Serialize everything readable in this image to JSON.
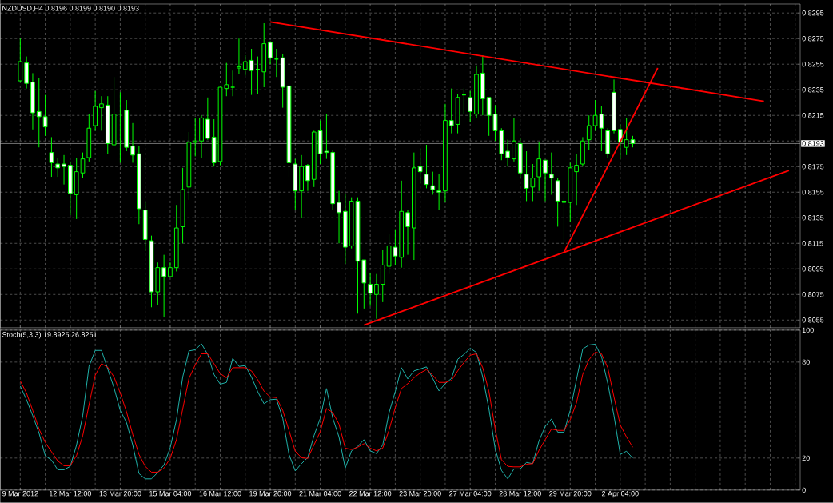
{
  "chart_data": [
    {
      "type": "candlestick",
      "title": "NZDUSD,H4 0.8196 0.8199 0.8190 0.8193",
      "color": "#00ff00",
      "categories": [
        null,
        null,
        null,
        null,
        null,
        null,
        null,
        null,
        null,
        null,
        null,
        null,
        null,
        null,
        null,
        null,
        null,
        null,
        null,
        null,
        null,
        null,
        null,
        null,
        null,
        null,
        null,
        null,
        null,
        null,
        null,
        null,
        null,
        null,
        null,
        null,
        null,
        null,
        null,
        null,
        null,
        null,
        null,
        null,
        null,
        null,
        null,
        null,
        null,
        null,
        null,
        null,
        null,
        null,
        null,
        null,
        null,
        null,
        null,
        null,
        null,
        null,
        null,
        null,
        null,
        null,
        null,
        null,
        null,
        null,
        null,
        null,
        null,
        null,
        null,
        null,
        null,
        null,
        null,
        null,
        null,
        null,
        null,
        null,
        null,
        null,
        null,
        null,
        null,
        null,
        null,
        null,
        null,
        null,
        null,
        null,
        null,
        null,
        null,
        null,
        null,
        null,
        null,
        null,
        null,
        null,
        null,
        null,
        null,
        null,
        null,
        null,
        null,
        null,
        null,
        null,
        null,
        null,
        null,
        null,
        null,
        null,
        null,
        null,
        null
      ],
      "ohlc": [
        [
          0.8242,
          0.8275,
          0.8241,
          0.8257
        ],
        [
          0.8256,
          0.8261,
          0.8236,
          0.824
        ],
        [
          0.8241,
          0.8248,
          0.8204,
          0.8217
        ],
        [
          0.8218,
          0.8244,
          0.819,
          0.8214
        ],
        [
          0.8214,
          0.8231,
          0.8199,
          0.8206
        ],
        [
          0.8186,
          0.8198,
          0.8167,
          0.8178
        ],
        [
          0.8177,
          0.8182,
          0.8167,
          0.8174
        ],
        [
          0.8177,
          0.8184,
          0.8161,
          0.8175
        ],
        [
          0.8176,
          0.8179,
          0.8137,
          0.8154
        ],
        [
          0.8153,
          0.8182,
          0.8134,
          0.8171
        ],
        [
          0.817,
          0.8186,
          0.8166,
          0.8181
        ],
        [
          0.8182,
          0.8216,
          0.8179,
          0.8205
        ],
        [
          0.8207,
          0.8234,
          0.8203,
          0.8222
        ],
        [
          0.8221,
          0.823,
          0.8203,
          0.8224
        ],
        [
          0.8223,
          0.823,
          0.8185,
          0.8193
        ],
        [
          0.8192,
          0.8245,
          0.8191,
          0.8216
        ],
        [
          0.8216,
          0.8233,
          0.8178,
          0.8216
        ],
        [
          0.8219,
          0.8227,
          0.8187,
          0.819
        ],
        [
          0.8191,
          0.8209,
          0.8178,
          0.8184
        ],
        [
          0.8185,
          0.8191,
          0.813,
          0.8142
        ],
        [
          0.8141,
          0.8147,
          0.8109,
          0.8118
        ],
        [
          0.8117,
          0.8121,
          0.8065,
          0.8077
        ],
        [
          0.8077,
          0.81,
          0.8067,
          0.8096
        ],
        [
          0.8096,
          0.8106,
          0.8057,
          0.8089
        ],
        [
          0.8089,
          0.81,
          0.8089,
          0.8096
        ],
        [
          0.8096,
          0.8145,
          0.8093,
          0.8127
        ],
        [
          0.8128,
          0.8174,
          0.8115,
          0.8157
        ],
        [
          0.8159,
          0.8202,
          0.8149,
          0.8194
        ],
        [
          0.8194,
          0.8213,
          0.8183,
          0.8195
        ],
        [
          0.8195,
          0.8215,
          0.8182,
          0.8213
        ],
        [
          0.8212,
          0.8229,
          0.8196,
          0.8197
        ],
        [
          0.8198,
          0.8212,
          0.8175,
          0.8178
        ],
        [
          0.8179,
          0.8237,
          0.8176,
          0.8237
        ],
        [
          0.8236,
          0.8256,
          0.823,
          0.8239
        ],
        [
          0.8237,
          0.825,
          0.823,
          0.8237
        ],
        [
          0.8252,
          0.8275,
          0.8247,
          0.8253
        ],
        [
          0.8251,
          0.8262,
          0.8246,
          0.8257
        ],
        [
          0.8258,
          0.8267,
          0.8231,
          0.825
        ],
        [
          0.8251,
          0.8261,
          0.8232,
          0.8251
        ],
        [
          0.8249,
          0.8287,
          0.8237,
          0.8271
        ],
        [
          0.8272,
          0.8273,
          0.8255,
          0.826
        ],
        [
          0.8259,
          0.8267,
          0.8245,
          0.8259
        ],
        [
          0.826,
          0.8263,
          0.8221,
          0.8237
        ],
        [
          0.8238,
          0.8239,
          0.8167,
          0.8178
        ],
        [
          0.8177,
          0.8181,
          0.8141,
          0.8156
        ],
        [
          0.8156,
          0.8184,
          0.8135,
          0.8175
        ],
        [
          0.8176,
          0.8177,
          0.8156,
          0.8164
        ],
        [
          0.8165,
          0.8203,
          0.8159,
          0.8202
        ],
        [
          0.8203,
          0.8211,
          0.8177,
          0.8185
        ],
        [
          0.8187,
          0.8216,
          0.8181,
          0.8186
        ],
        [
          0.8186,
          0.8188,
          0.8141,
          0.8146
        ],
        [
          0.8147,
          0.8156,
          0.8115,
          0.8139
        ],
        [
          0.814,
          0.8154,
          0.8099,
          0.8112
        ],
        [
          0.8113,
          0.8151,
          0.8111,
          0.8148
        ],
        [
          0.8148,
          0.8151,
          0.806,
          0.8101
        ],
        [
          0.8102,
          0.8102,
          0.8064,
          0.8084
        ],
        [
          0.8083,
          0.8092,
          0.8066,
          0.8076
        ],
        [
          0.8075,
          0.8091,
          0.8056,
          0.8083
        ],
        [
          0.8083,
          0.811,
          0.8069,
          0.8098
        ],
        [
          0.8097,
          0.8122,
          0.8091,
          0.8113
        ],
        [
          0.8112,
          0.8126,
          0.8098,
          0.8105
        ],
        [
          0.8104,
          0.8164,
          0.8096,
          0.814
        ],
        [
          0.8139,
          0.8141,
          0.8106,
          0.8128
        ],
        [
          0.8127,
          0.8186,
          0.8102,
          0.8174
        ],
        [
          0.8175,
          0.8189,
          0.8162,
          0.8171
        ],
        [
          0.8169,
          0.8192,
          0.8158,
          0.8161
        ],
        [
          0.816,
          0.8171,
          0.8153,
          0.8157
        ],
        [
          0.8156,
          0.8169,
          0.8141,
          0.8155
        ],
        [
          0.8156,
          0.8224,
          0.8147,
          0.8211
        ],
        [
          0.8211,
          0.8236,
          0.8201,
          0.8207
        ],
        [
          0.8208,
          0.8232,
          0.8201,
          0.8229
        ],
        [
          0.8231,
          0.8236,
          0.8216,
          0.8231
        ],
        [
          0.8229,
          0.8234,
          0.821,
          0.8218
        ],
        [
          0.8216,
          0.8254,
          0.8213,
          0.8247
        ],
        [
          0.8248,
          0.8262,
          0.8215,
          0.8228
        ],
        [
          0.8229,
          0.8229,
          0.8199,
          0.8215
        ],
        [
          0.8216,
          0.8223,
          0.8195,
          0.8203
        ],
        [
          0.8203,
          0.8205,
          0.818,
          0.8185
        ],
        [
          0.8187,
          0.8196,
          0.8175,
          0.8182
        ],
        [
          0.8181,
          0.8213,
          0.8179,
          0.8195
        ],
        [
          0.8193,
          0.8197,
          0.8166,
          0.817
        ],
        [
          0.8169,
          0.8187,
          0.8148,
          0.8158
        ],
        [
          0.8159,
          0.8177,
          0.8148,
          0.8166
        ],
        [
          0.8167,
          0.8194,
          0.8156,
          0.8181
        ],
        [
          0.818,
          0.818,
          0.8148,
          0.817
        ],
        [
          0.8169,
          0.8186,
          0.8153,
          0.8166
        ],
        [
          0.8164,
          0.8166,
          0.8128,
          0.8148
        ],
        [
          0.8148,
          0.8151,
          0.8114,
          0.8147
        ],
        [
          0.8147,
          0.8178,
          0.8132,
          0.8174
        ],
        [
          0.8171,
          0.8185,
          0.8145,
          0.8176
        ],
        [
          0.8177,
          0.8198,
          0.8175,
          0.8195
        ],
        [
          0.8196,
          0.8215,
          0.8188,
          0.8207
        ],
        [
          0.8207,
          0.8227,
          0.8203,
          0.8215
        ],
        [
          0.8216,
          0.8222,
          0.8187,
          0.8205
        ],
        [
          0.8203,
          0.8205,
          0.8182,
          0.8185
        ],
        [
          0.8233,
          0.8243,
          0.8201,
          0.8203
        ],
        [
          0.8204,
          0.8208,
          0.8181,
          0.8194
        ],
        [
          0.819,
          0.8213,
          0.8184,
          0.8196
        ],
        [
          0.8196,
          0.8199,
          0.819,
          0.8193
        ],
        null,
        null,
        null,
        null,
        null,
        null,
        null,
        null,
        null,
        null,
        null,
        null,
        null,
        null,
        null,
        null,
        null,
        null,
        null,
        null,
        null,
        null,
        null,
        null,
        null,
        null
      ],
      "series": [
        {
          "type": "line",
          "color": "#ff0000",
          "values": [
            null,
            null,
            null,
            null,
            null,
            null,
            null,
            null,
            null,
            null,
            null,
            null,
            null,
            null,
            null,
            null,
            null,
            null,
            null,
            null,
            null,
            null,
            null,
            null,
            null,
            null,
            null,
            null,
            null,
            null,
            null,
            null,
            null,
            null,
            null,
            null,
            null,
            null,
            null,
            null,
            0.8288,
            null,
            null,
            null,
            null,
            null,
            null,
            null,
            null,
            null,
            null,
            null,
            null,
            null,
            null,
            null,
            null,
            null,
            null,
            null,
            null,
            null,
            null,
            null,
            null,
            null,
            null,
            null,
            null,
            null,
            null,
            null,
            null,
            null,
            null,
            null,
            null,
            null,
            null,
            null,
            null,
            null,
            null,
            null,
            null,
            null,
            null,
            null,
            null,
            null,
            null,
            null,
            null,
            null,
            null,
            null,
            null,
            null,
            null,
            null,
            null,
            null,
            null,
            null,
            null,
            null,
            null,
            null,
            null,
            null,
            null,
            null,
            null,
            null,
            null,
            null,
            null,
            null,
            null,
            0.8226,
            null,
            null,
            null,
            null,
            null
          ]
        },
        {
          "type": "line",
          "color": "#ff0000",
          "values": [
            null,
            null,
            null,
            null,
            null,
            null,
            null,
            null,
            null,
            null,
            null,
            null,
            null,
            null,
            null,
            null,
            null,
            null,
            null,
            null,
            null,
            null,
            null,
            null,
            null,
            null,
            null,
            null,
            null,
            null,
            null,
            null,
            null,
            null,
            null,
            null,
            null,
            null,
            null,
            null,
            null,
            null,
            null,
            null,
            null,
            null,
            null,
            null,
            null,
            null,
            null,
            null,
            null,
            null,
            null,
            0.8051,
            null,
            null,
            null,
            null,
            null,
            null,
            null,
            null,
            null,
            null,
            null,
            null,
            null,
            null,
            null,
            null,
            null,
            null,
            null,
            null,
            null,
            null,
            null,
            null,
            null,
            null,
            null,
            null,
            null,
            null,
            null,
            null,
            null,
            null,
            null,
            null,
            null,
            null,
            null,
            null,
            null,
            null,
            null,
            null,
            null,
            null,
            null,
            null,
            null,
            null,
            null,
            null,
            null,
            null,
            null,
            null,
            null,
            null,
            null,
            null,
            null,
            null,
            null,
            null,
            null,
            null,
            null,
            0.8172,
            null
          ]
        },
        {
          "type": "line",
          "color": "#ff0000",
          "values": [
            null,
            null,
            null,
            null,
            null,
            null,
            null,
            null,
            null,
            null,
            null,
            null,
            null,
            null,
            null,
            null,
            null,
            null,
            null,
            null,
            null,
            null,
            null,
            null,
            null,
            null,
            null,
            null,
            null,
            null,
            null,
            null,
            null,
            null,
            null,
            null,
            null,
            null,
            null,
            null,
            null,
            null,
            null,
            null,
            null,
            null,
            null,
            null,
            null,
            null,
            null,
            null,
            null,
            null,
            null,
            null,
            null,
            null,
            null,
            null,
            null,
            null,
            null,
            null,
            null,
            null,
            null,
            null,
            null,
            null,
            null,
            null,
            null,
            null,
            null,
            null,
            null,
            null,
            null,
            null,
            null,
            null,
            null,
            null,
            null,
            null,
            null,
            0.8108,
            null,
            null,
            null,
            null,
            null,
            null,
            null,
            null,
            null,
            null,
            null,
            null,
            null,
            null,
            0.8252,
            null,
            null,
            null,
            null,
            null,
            null,
            null,
            null,
            null,
            null,
            null,
            null,
            null,
            null,
            null,
            null,
            null,
            null,
            null,
            null,
            null,
            null
          ]
        }
      ],
      "ref_lines": [
        {
          "axis": "y",
          "value": 0.8193,
          "label": "0.8193",
          "color": "#c0c0c0"
        }
      ],
      "ylim": [
        0.8049,
        0.8302
      ],
      "yticks": [
        0.8055,
        0.8075,
        0.8095,
        0.8115,
        0.8135,
        0.8155,
        0.8175,
        {
          "value": 0.8195,
          "label": null
        },
        0.8215,
        0.8235,
        0.8255,
        0.8275,
        0.8295
      ],
      "grid": true,
      "tick_labels": "y"
    },
    {
      "type": "line",
      "title": "Stoch(5,3,3) 19.8925 26.8251",
      "categories": [
        "9 Mar 2012",
        null,
        null,
        null,
        null,
        null,
        null,
        null,
        "12 Mar 12:00",
        null,
        null,
        null,
        null,
        null,
        null,
        null,
        "13 Mar 20:00",
        null,
        null,
        null,
        null,
        null,
        null,
        null,
        "15 Mar 04:00",
        null,
        null,
        null,
        null,
        null,
        null,
        null,
        "16 Mar 12:00",
        null,
        null,
        null,
        null,
        null,
        null,
        null,
        "19 Mar 20:00",
        null,
        null,
        null,
        null,
        null,
        null,
        null,
        "21 Mar 04:00",
        null,
        null,
        null,
        null,
        null,
        null,
        null,
        "22 Mar 12:00",
        null,
        null,
        null,
        null,
        null,
        null,
        null,
        "23 Mar 20:00",
        null,
        null,
        null,
        null,
        null,
        null,
        null,
        "27 Mar 04:00",
        null,
        null,
        null,
        null,
        null,
        null,
        null,
        "28 Mar 12:00",
        null,
        null,
        null,
        null,
        null,
        null,
        null,
        "29 Mar 20:00",
        null,
        null,
        null,
        null,
        null,
        null,
        null,
        "2 Apr 04:00",
        null,
        null,
        null,
        null,
        null,
        null,
        null,
        null,
        null,
        null,
        null,
        null,
        null,
        null,
        null,
        null,
        null,
        null,
        null,
        null,
        null,
        null,
        null,
        null,
        null,
        null,
        null,
        null
      ],
      "series": [
        {
          "color": "#20b2aa",
          "values": [
            65,
            56.5,
            46.5,
            35.7,
            21.5,
            18.7,
            12.7,
            12.7,
            14.8,
            28,
            46.5,
            77.3,
            87.3,
            87.3,
            75.7,
            64,
            49.8,
            42.3,
            28.2,
            10.3,
            7,
            7,
            11,
            15.7,
            26.5,
            44,
            70.7,
            87,
            87.7,
            91.5,
            84.8,
            72.3,
            66.2,
            67.3,
            82.3,
            77.3,
            77.8,
            70.7,
            61.5,
            54,
            56.5,
            56.8,
            44.8,
            22.3,
            12,
            16.5,
            20.3,
            34,
            44.8,
            63.5,
            45,
            33.2,
            13.7,
            24.5,
            27.3,
            31.5,
            24.5,
            22.8,
            28.2,
            48.2,
            61.5,
            76.5,
            69.5,
            74.5,
            75.7,
            77,
            69.8,
            62,
            66.5,
            69.8,
            81.8,
            84.8,
            88.7,
            86,
            70.7,
            50.7,
            25.7,
            12.3,
            7,
            13.2,
            13.2,
            17.3,
            16.5,
            30.7,
            39.8,
            44.5,
            36.2,
            36.2,
            49.8,
            69,
            88.2,
            90.7,
            91.2,
            83.5,
            66.8,
            46.5,
            22.3,
            24.3,
            19.9,
            null,
            null,
            null,
            null,
            null,
            null,
            null,
            null,
            null,
            null,
            null,
            null,
            null,
            null,
            null,
            null,
            null,
            null,
            null,
            null,
            null,
            null,
            null,
            null,
            null,
            null
          ]
        },
        {
          "color": "#ff0000",
          "values": [
            68.2,
            60.7,
            49.8,
            38.2,
            29.8,
            24,
            18.2,
            15.2,
            15.2,
            21.5,
            34,
            53.2,
            71.8,
            79,
            76.8,
            70.7,
            60.7,
            49,
            34.8,
            22.3,
            14.8,
            11.2,
            11.2,
            13.7,
            19.8,
            31.5,
            50.7,
            69.8,
            78.2,
            85.2,
            85.2,
            79,
            72.8,
            70.2,
            76.5,
            76.5,
            76.5,
            74.5,
            69,
            61.8,
            58.2,
            57.8,
            49.8,
            37.3,
            24.3,
            20.2,
            19.8,
            28.2,
            36.5,
            51,
            48.5,
            41.2,
            26.2,
            25.3,
            26.8,
            29,
            26.2,
            24.5,
            26.2,
            37.3,
            51.5,
            63.5,
            66.5,
            70.2,
            73.2,
            75.3,
            71.8,
            67.3,
            67.3,
            68.5,
            74.5,
            79.8,
            84.3,
            85.2,
            76.5,
            61.5,
            38.2,
            19,
            14.8,
            14.5,
            14.5,
            16.2,
            16.5,
            24.8,
            31.5,
            38.2,
            37.3,
            37.3,
            44,
            54.5,
            72.3,
            81.5,
            86.2,
            85.2,
            76.5,
            58.2,
            40.7,
            33.2,
            26.8,
            null,
            null,
            null,
            null,
            null,
            null,
            null,
            null,
            null,
            null,
            null,
            null,
            null,
            null,
            null,
            null,
            null,
            null,
            null,
            null,
            null,
            null,
            null,
            null,
            null,
            null
          ]
        }
      ],
      "ylim": [
        0,
        100
      ],
      "yticks": [
        0,
        20,
        80,
        100
      ],
      "grid": true
    }
  ]
}
